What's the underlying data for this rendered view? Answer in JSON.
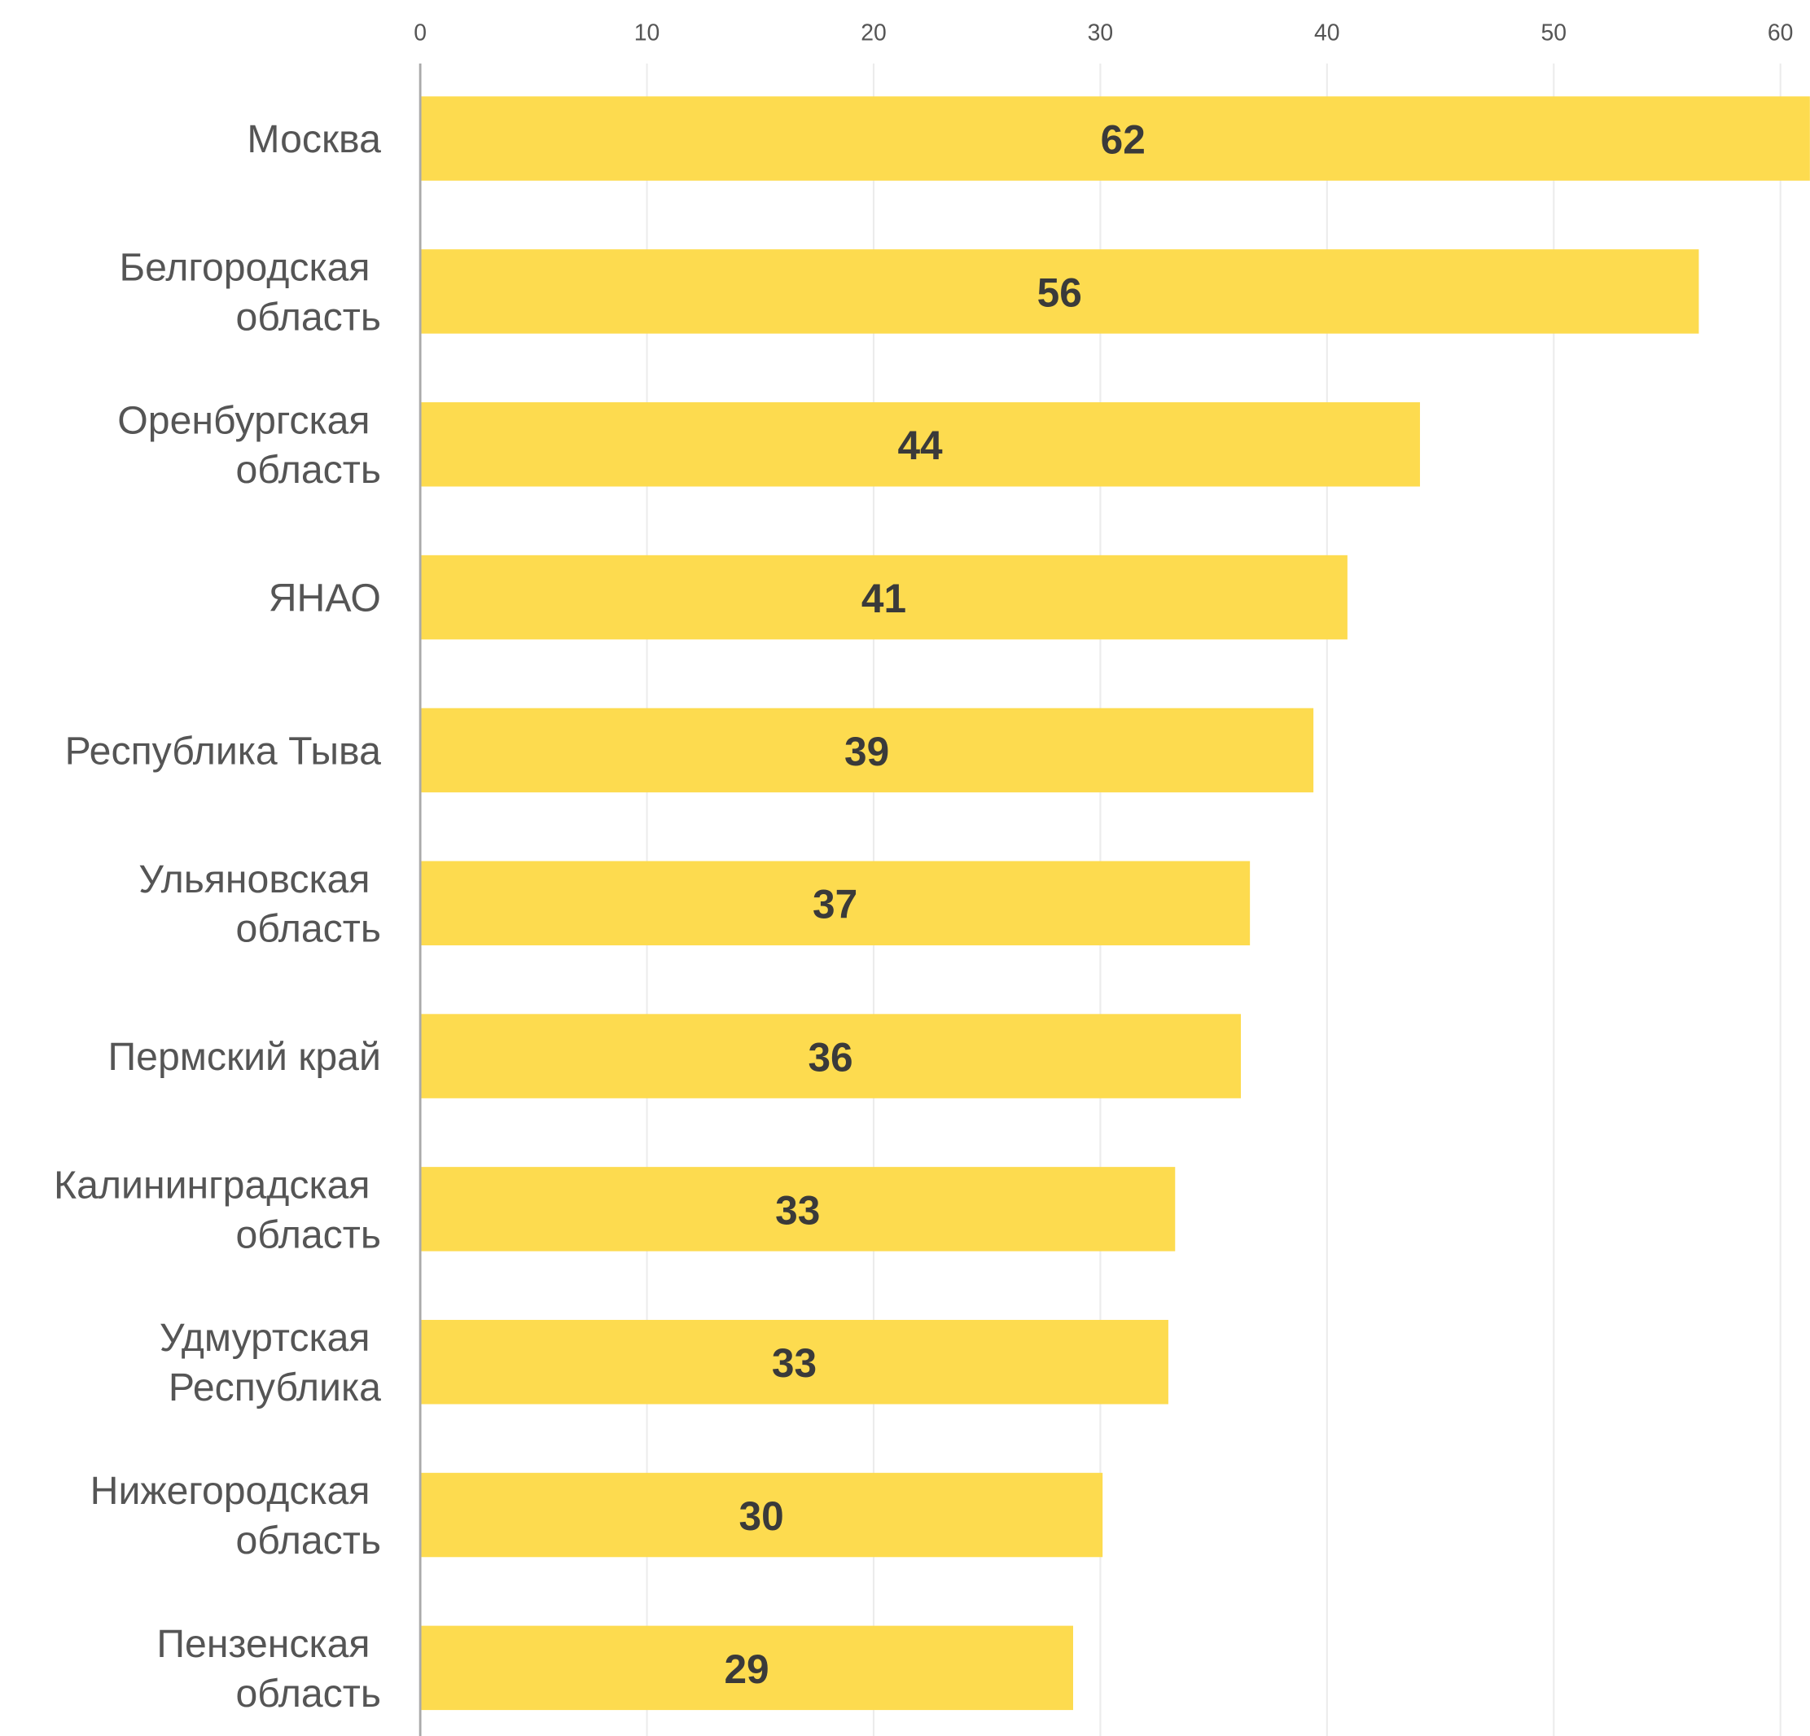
{
  "chart_data": {
    "type": "bar",
    "orientation": "horizontal",
    "categories": [
      "Москва",
      "Белгородская\nобласть",
      "Оренбургская\nобласть",
      "ЯНАО",
      "Республика Тыва",
      "Ульяновская\nобласть",
      "Пермский край",
      "Калининградская\nобласть",
      "Удмуртская\nРеспублика",
      "Нижегородская\nобласть",
      "Пензенская\nобласть"
    ],
    "values": [
      62,
      56.4,
      44.1,
      40.9,
      39.4,
      36.6,
      36.2,
      33.3,
      33.0,
      30.1,
      28.8
    ],
    "value_labels": [
      "62",
      "56",
      "44",
      "41",
      "39",
      "37",
      "36",
      "33",
      "33",
      "30",
      "29"
    ],
    "color": "#fddb4f",
    "xlim": [
      0,
      61.3
    ],
    "xticks": [
      0,
      10,
      20,
      30,
      40,
      50,
      60
    ],
    "grid": true
  }
}
